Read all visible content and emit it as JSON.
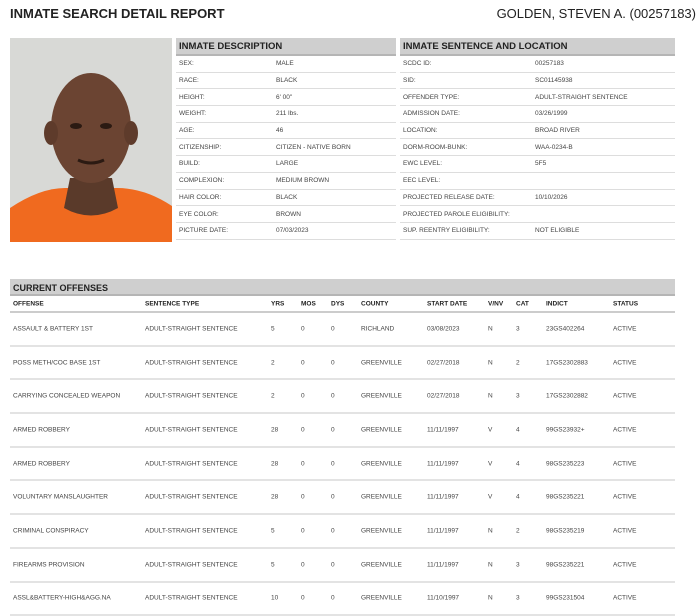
{
  "header": {
    "title": "INMATE SEARCH DETAIL REPORT",
    "inmate_name": "GOLDEN, STEVEN A. (00257183)"
  },
  "description": {
    "title": "INMATE DESCRIPTION",
    "rows": [
      [
        "SEX:",
        "MALE"
      ],
      [
        "RACE:",
        "BLACK"
      ],
      [
        "HEIGHT:",
        "6' 00\""
      ],
      [
        "WEIGHT:",
        "211 lbs."
      ],
      [
        "AGE:",
        "46"
      ],
      [
        "CITIZENSHIP:",
        "CITIZEN - NATIVE BORN"
      ],
      [
        "BUILD:",
        "LARGE"
      ],
      [
        "COMPLEXION:",
        "MEDIUM BROWN"
      ],
      [
        "HAIR COLOR:",
        "BLACK"
      ],
      [
        "EYE COLOR:",
        "BROWN"
      ],
      [
        "PICTURE DATE:",
        "07/03/2023"
      ]
    ]
  },
  "sentence": {
    "title": "INMATE SENTENCE AND LOCATION",
    "rows": [
      [
        "SCDC ID:",
        "00257183"
      ],
      [
        "SID:",
        "SC01145938"
      ],
      [
        "OFFENDER TYPE:",
        "ADULT-STRAIGHT SENTENCE"
      ],
      [
        "ADMISSION DATE:",
        "03/26/1999"
      ],
      [
        "LOCATION:",
        "BROAD RIVER"
      ],
      [
        "DORM-ROOM-BUNK:",
        "WAA-0234-B"
      ],
      [
        "EWC LEVEL:",
        "5F5"
      ],
      [
        "EEC LEVEL:",
        ""
      ],
      [
        "PROJECTED RELEASE DATE:",
        "10/10/2026"
      ],
      [
        "PROJECTED PAROLE ELIGIBILITY:",
        ""
      ],
      [
        "SUP. REENTRY ELIGIBILITY:",
        "NOT ELIGIBLE"
      ]
    ]
  },
  "offenses": {
    "title": "CURRENT OFFENSES",
    "columns": [
      "OFFENSE",
      "SENTENCE TYPE",
      "YRS",
      "MOS",
      "DYS",
      "COUNTY",
      "START DATE",
      "V/NV",
      "CAT",
      "INDICT",
      "STATUS"
    ],
    "rows": [
      [
        "ASSAULT & BATTERY 1ST",
        "ADULT-STRAIGHT SENTENCE",
        "5",
        "0",
        "0",
        "RICHLAND",
        "03/08/2023",
        "N",
        "3",
        "23GS402264",
        "ACTIVE"
      ],
      [
        "POSS METH/COC BASE 1ST",
        "ADULT-STRAIGHT SENTENCE",
        "2",
        "0",
        "0",
        "GREENVILLE",
        "02/27/2018",
        "N",
        "2",
        "17GS2302883",
        "ACTIVE"
      ],
      [
        "CARRYING CONCEALED WEAPON",
        "ADULT-STRAIGHT SENTENCE",
        "2",
        "0",
        "0",
        "GREENVILLE",
        "02/27/2018",
        "N",
        "3",
        "17GS2302882",
        "ACTIVE"
      ],
      [
        "ARMED ROBBERY",
        "ADULT-STRAIGHT SENTENCE",
        "28",
        "0",
        "0",
        "GREENVILLE",
        "11/11/1997",
        "V",
        "4",
        "99GS23932+",
        "ACTIVE"
      ],
      [
        "ARMED ROBBERY",
        "ADULT-STRAIGHT SENTENCE",
        "28",
        "0",
        "0",
        "GREENVILLE",
        "11/11/1997",
        "V",
        "4",
        "98GS235223",
        "ACTIVE"
      ],
      [
        "VOLUNTARY MANSLAUGHTER",
        "ADULT-STRAIGHT SENTENCE",
        "28",
        "0",
        "0",
        "GREENVILLE",
        "11/11/1997",
        "V",
        "4",
        "98GS235221",
        "ACTIVE"
      ],
      [
        "CRIMINAL CONSPIRACY",
        "ADULT-STRAIGHT SENTENCE",
        "5",
        "0",
        "0",
        "GREENVILLE",
        "11/11/1997",
        "N",
        "2",
        "98GS235219",
        "ACTIVE"
      ],
      [
        "FIREARMS PROVISION",
        "ADULT-STRAIGHT SENTENCE",
        "5",
        "0",
        "0",
        "GREENVILLE",
        "11/11/1997",
        "N",
        "3",
        "98GS235221",
        "ACTIVE"
      ],
      [
        "ASSL&BATTERY-HIGH&AGG.NA",
        "ADULT-STRAIGHT SENTENCE",
        "10",
        "0",
        "0",
        "GREENVILLE",
        "11/10/1997",
        "N",
        "3",
        "99GS231504",
        "ACTIVE"
      ]
    ]
  }
}
